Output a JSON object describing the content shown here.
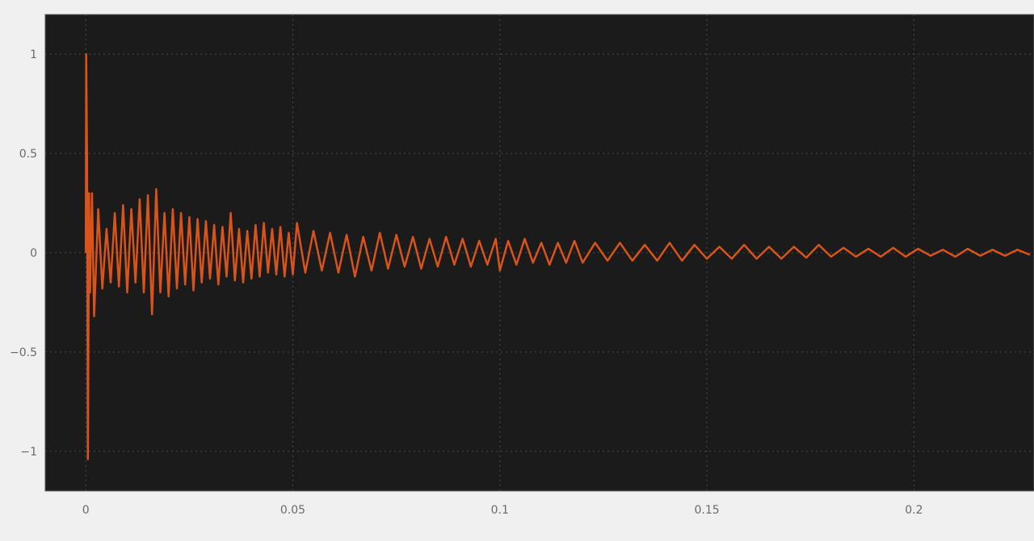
{
  "chart_data": {
    "type": "line",
    "title": "",
    "xlabel": "",
    "ylabel": "",
    "xlim": [
      -0.0098,
      0.229
    ],
    "ylim": [
      -1.2,
      1.2
    ],
    "grid": true,
    "legend": "none",
    "background_color": "#1b1b1b",
    "line_color": "#d9541a",
    "x_ticks": [
      {
        "value": 0,
        "label": "0"
      },
      {
        "value": 0.05,
        "label": "0.05"
      },
      {
        "value": 0.1,
        "label": "0.1"
      },
      {
        "value": 0.15,
        "label": "0.15"
      },
      {
        "value": 0.2,
        "label": "0.2"
      }
    ],
    "y_ticks": [
      {
        "value": 1,
        "label": "1"
      },
      {
        "value": 0.5,
        "label": "0.5"
      },
      {
        "value": 0,
        "label": "0"
      },
      {
        "value": -0.5,
        "label": "−0.5"
      },
      {
        "value": -1,
        "label": "−1"
      }
    ],
    "series": [
      {
        "points": [
          [
            0,
            0
          ],
          [
            0.0001,
            1.0
          ],
          [
            0.0003,
            0.45
          ],
          [
            0.0005,
            -1.04
          ],
          [
            0.0008,
            0.3
          ],
          [
            0.001,
            -0.2
          ],
          [
            0.0015,
            0.3
          ],
          [
            0.002,
            -0.32
          ],
          [
            0.003,
            0.22
          ],
          [
            0.004,
            -0.18
          ],
          [
            0.005,
            0.12
          ],
          [
            0.006,
            -0.15
          ],
          [
            0.007,
            0.2
          ],
          [
            0.008,
            -0.17
          ],
          [
            0.009,
            0.24
          ],
          [
            0.01,
            -0.2
          ],
          [
            0.011,
            0.22
          ],
          [
            0.012,
            -0.15
          ],
          [
            0.013,
            0.27
          ],
          [
            0.014,
            -0.2
          ],
          [
            0.015,
            0.29
          ],
          [
            0.016,
            -0.31
          ],
          [
            0.017,
            0.32
          ],
          [
            0.018,
            -0.2
          ],
          [
            0.019,
            0.2
          ],
          [
            0.02,
            -0.22
          ],
          [
            0.021,
            0.22
          ],
          [
            0.022,
            -0.18
          ],
          [
            0.023,
            0.2
          ],
          [
            0.024,
            -0.16
          ],
          [
            0.025,
            0.18
          ],
          [
            0.026,
            -0.19
          ],
          [
            0.027,
            0.17
          ],
          [
            0.028,
            -0.15
          ],
          [
            0.029,
            0.16
          ],
          [
            0.03,
            -0.13
          ],
          [
            0.031,
            0.14
          ],
          [
            0.032,
            -0.16
          ],
          [
            0.033,
            0.13
          ],
          [
            0.034,
            -0.12
          ],
          [
            0.035,
            0.2
          ],
          [
            0.036,
            -0.14
          ],
          [
            0.037,
            0.12
          ],
          [
            0.038,
            -0.15
          ],
          [
            0.039,
            0.11
          ],
          [
            0.04,
            -0.13
          ],
          [
            0.041,
            0.14
          ],
          [
            0.042,
            -0.12
          ],
          [
            0.043,
            0.15
          ],
          [
            0.044,
            -0.1
          ],
          [
            0.045,
            0.12
          ],
          [
            0.046,
            -0.11
          ],
          [
            0.047,
            0.13
          ],
          [
            0.048,
            -0.12
          ],
          [
            0.049,
            0.1
          ],
          [
            0.05,
            -0.11
          ],
          [
            0.051,
            0.15
          ],
          [
            0.053,
            -0.1
          ],
          [
            0.055,
            0.11
          ],
          [
            0.057,
            -0.09
          ],
          [
            0.059,
            0.1
          ],
          [
            0.061,
            -0.1
          ],
          [
            0.063,
            0.09
          ],
          [
            0.065,
            -0.12
          ],
          [
            0.067,
            0.08
          ],
          [
            0.069,
            -0.09
          ],
          [
            0.071,
            0.1
          ],
          [
            0.073,
            -0.08
          ],
          [
            0.075,
            0.09
          ],
          [
            0.077,
            -0.07
          ],
          [
            0.079,
            0.08
          ],
          [
            0.081,
            -0.08
          ],
          [
            0.083,
            0.07
          ],
          [
            0.085,
            -0.07
          ],
          [
            0.087,
            0.08
          ],
          [
            0.089,
            -0.06
          ],
          [
            0.091,
            0.07
          ],
          [
            0.093,
            -0.07
          ],
          [
            0.095,
            0.06
          ],
          [
            0.097,
            -0.06
          ],
          [
            0.099,
            0.07
          ],
          [
            0.1,
            -0.09
          ],
          [
            0.102,
            0.06
          ],
          [
            0.104,
            -0.06
          ],
          [
            0.106,
            0.07
          ],
          [
            0.108,
            -0.05
          ],
          [
            0.11,
            0.05
          ],
          [
            0.112,
            -0.06
          ],
          [
            0.114,
            0.05
          ],
          [
            0.116,
            -0.05
          ],
          [
            0.118,
            0.06
          ],
          [
            0.12,
            -0.05
          ],
          [
            0.123,
            0.05
          ],
          [
            0.126,
            -0.04
          ],
          [
            0.129,
            0.05
          ],
          [
            0.132,
            -0.04
          ],
          [
            0.135,
            0.04
          ],
          [
            0.138,
            -0.04
          ],
          [
            0.141,
            0.05
          ],
          [
            0.144,
            -0.04
          ],
          [
            0.147,
            0.04
          ],
          [
            0.15,
            -0.03
          ],
          [
            0.153,
            0.03
          ],
          [
            0.156,
            -0.03
          ],
          [
            0.159,
            0.04
          ],
          [
            0.162,
            -0.03
          ],
          [
            0.165,
            0.03
          ],
          [
            0.168,
            -0.03
          ],
          [
            0.171,
            0.03
          ],
          [
            0.174,
            -0.025
          ],
          [
            0.177,
            0.04
          ],
          [
            0.18,
            -0.02
          ],
          [
            0.183,
            0.025
          ],
          [
            0.186,
            -0.02
          ],
          [
            0.189,
            0.02
          ],
          [
            0.192,
            -0.02
          ],
          [
            0.195,
            0.025
          ],
          [
            0.198,
            -0.02
          ],
          [
            0.201,
            0.02
          ],
          [
            0.204,
            -0.015
          ],
          [
            0.207,
            0.015
          ],
          [
            0.21,
            -0.02
          ],
          [
            0.213,
            0.02
          ],
          [
            0.216,
            -0.015
          ],
          [
            0.219,
            0.015
          ],
          [
            0.222,
            -0.015
          ],
          [
            0.225,
            0.015
          ],
          [
            0.228,
            -0.01
          ]
        ]
      }
    ]
  }
}
